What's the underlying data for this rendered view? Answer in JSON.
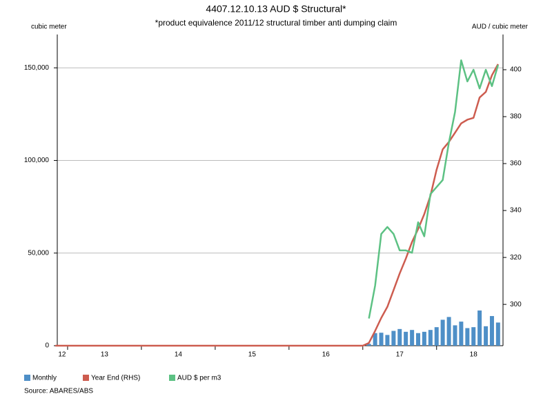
{
  "chart_data": {
    "type": "bar",
    "title": "4407.12.10.13 AUD $ Structural*",
    "subtitle": "*product equivalence 2011/12 structural timber anti dumping claim",
    "y_label": "cubic meter",
    "y2_label": "AUD / cubic meter",
    "source": "Source: ABARES/ABS",
    "xlim": [
      2012.86,
      2018.9
    ],
    "xticks": [
      {
        "value": 2012.925,
        "label": "12"
      },
      {
        "value": 2013.5,
        "label": "13"
      },
      {
        "value": 2014.5,
        "label": "14"
      },
      {
        "value": 2015.5,
        "label": "15"
      },
      {
        "value": 2016.5,
        "label": "16"
      },
      {
        "value": 2017.5,
        "label": "17"
      },
      {
        "value": 2018.5,
        "label": "18"
      }
    ],
    "ylim": [
      0,
      168000
    ],
    "yticks": [
      0,
      {
        "value": 50000,
        "label": "50,000"
      },
      {
        "value": 100000,
        "label": "100,000"
      },
      {
        "value": 150000,
        "label": "150,000"
      }
    ],
    "y2lim": [
      282.4,
      415
    ],
    "y2ticks": [
      300,
      320,
      340,
      360,
      380,
      400
    ],
    "grid": true,
    "x": [
      2012.833,
      2012.917,
      2013,
      2013.083,
      2013.167,
      2013.25,
      2013.333,
      2013.417,
      2013.5,
      2013.583,
      2013.667,
      2013.75,
      2013.833,
      2013.917,
      2014,
      2014.083,
      2014.167,
      2014.25,
      2014.333,
      2014.417,
      2014.5,
      2014.583,
      2014.667,
      2014.75,
      2014.833,
      2014.917,
      2015,
      2015.083,
      2015.167,
      2015.25,
      2015.333,
      2015.417,
      2015.5,
      2015.583,
      2015.667,
      2015.75,
      2015.833,
      2015.917,
      2016,
      2016.083,
      2016.167,
      2016.25,
      2016.333,
      2016.417,
      2016.5,
      2016.583,
      2016.667,
      2016.75,
      2016.833,
      2016.917,
      2017,
      2017.083,
      2017.167,
      2017.25,
      2017.333,
      2017.417,
      2017.5,
      2017.583,
      2017.667,
      2017.75,
      2017.833,
      2017.917,
      2018,
      2018.083,
      2018.167,
      2018.25,
      2018.333,
      2018.417,
      2018.5,
      2018.583,
      2018.667,
      2018.75,
      2018.833
    ],
    "series": [
      {
        "name": "Monthly",
        "type": "bar",
        "color": "#4e8fc7",
        "values": [
          null,
          null,
          null,
          null,
          null,
          null,
          null,
          null,
          null,
          null,
          null,
          null,
          null,
          null,
          null,
          null,
          null,
          null,
          null,
          null,
          null,
          null,
          null,
          null,
          null,
          null,
          null,
          null,
          null,
          null,
          null,
          null,
          null,
          null,
          null,
          null,
          null,
          null,
          null,
          null,
          null,
          null,
          null,
          null,
          null,
          null,
          null,
          null,
          null,
          null,
          null,
          1000,
          6800,
          7000,
          5800,
          8000,
          9000,
          7500,
          8500,
          6800,
          7500,
          8500,
          10000,
          14000,
          15500,
          11000,
          13000,
          9500,
          10000,
          19000,
          10500,
          16000,
          12500
        ]
      },
      {
        "name": "Year End (RHS)",
        "type": "line",
        "color": "#cd5c4f",
        "values": [
          0,
          0,
          0,
          0,
          0,
          0,
          0,
          0,
          0,
          0,
          0,
          0,
          0,
          0,
          0,
          0,
          0,
          0,
          0,
          0,
          0,
          0,
          0,
          0,
          0,
          0,
          0,
          0,
          0,
          0,
          0,
          0,
          0,
          0,
          0,
          0,
          0,
          0,
          0,
          0,
          0,
          0,
          0,
          0,
          0,
          0,
          0,
          0,
          0,
          0,
          0,
          1500,
          8000,
          15000,
          21000,
          30000,
          39000,
          47000,
          56000,
          63000,
          71000,
          81000,
          95000,
          106000,
          110000,
          115000,
          120000,
          122000,
          123000,
          134000,
          137000,
          146000,
          152000
        ]
      },
      {
        "name": "AUD $ per m3",
        "type": "line",
        "axis": "y2",
        "color": "#5cc183",
        "values": [
          null,
          null,
          null,
          null,
          null,
          null,
          null,
          null,
          null,
          null,
          null,
          null,
          null,
          null,
          null,
          null,
          null,
          null,
          null,
          null,
          null,
          null,
          null,
          null,
          null,
          null,
          null,
          null,
          null,
          null,
          null,
          null,
          null,
          null,
          null,
          null,
          null,
          null,
          null,
          null,
          null,
          null,
          null,
          null,
          null,
          null,
          null,
          null,
          null,
          null,
          null,
          294,
          308,
          330,
          333,
          330,
          323,
          323,
          322,
          335,
          329,
          347,
          350,
          353,
          369,
          382,
          404,
          395,
          400,
          392,
          400,
          393,
          402
        ]
      }
    ]
  }
}
